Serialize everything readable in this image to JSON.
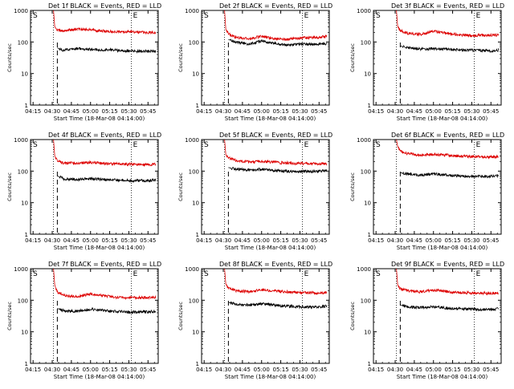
{
  "figure": {
    "panel_title_suffix": "BLACK = Events, RED = LLD",
    "xlabel": "Start Time (18-Mar-08 04:14:00)",
    "ylabel": "Counts/sec",
    "start_marker": "S",
    "end_marker": "E",
    "colors": {
      "events": "#000000",
      "lld": "#dd0000",
      "axes": "#000000"
    }
  },
  "chart_data": [
    {
      "type": "line",
      "title": "Det 1f BLACK = Events, RED = LLD",
      "x_ticks": [
        "04:15",
        "04:30",
        "04:45",
        "05:00",
        "05:15",
        "05:30",
        "05:45"
      ],
      "y_ticks": [
        "1",
        "10",
        "100",
        "1000"
      ],
      "y_scale": "log",
      "ylim": [
        1,
        1000
      ],
      "series": [
        {
          "color": "#dd0000",
          "points": [
            [
              "04:31",
              1000
            ],
            [
              "04:32",
              300
            ],
            [
              "04:34",
              240
            ],
            [
              "04:38",
              220
            ],
            [
              "04:50",
              260
            ],
            [
              "05:00",
              240
            ],
            [
              "05:15",
              215
            ],
            [
              "05:30",
              210
            ],
            [
              "05:45",
              200
            ],
            [
              "05:51",
              205
            ]
          ]
        },
        {
          "color": "#000000",
          "points": [
            [
              "04:34",
              65
            ],
            [
              "04:38",
              55
            ],
            [
              "04:50",
              62
            ],
            [
              "05:00",
              58
            ],
            [
              "05:15",
              56
            ],
            [
              "05:30",
              52
            ],
            [
              "05:45",
              50
            ],
            [
              "05:51",
              52
            ]
          ]
        }
      ]
    },
    {
      "type": "line",
      "title": "Det 2f BLACK = Events, RED = LLD",
      "x_ticks": [
        "04:15",
        "04:30",
        "04:45",
        "05:00",
        "05:15",
        "05:30",
        "05:45"
      ],
      "y_ticks": [
        "1",
        "10",
        "100",
        "1000"
      ],
      "y_scale": "log",
      "ylim": [
        1,
        1000
      ],
      "series": [
        {
          "color": "#dd0000",
          "points": [
            [
              "04:31",
              1000
            ],
            [
              "04:32",
              250
            ],
            [
              "04:34",
              180
            ],
            [
              "04:40",
              140
            ],
            [
              "04:50",
              125
            ],
            [
              "05:00",
              150
            ],
            [
              "05:10",
              130
            ],
            [
              "05:20",
              120
            ],
            [
              "05:30",
              135
            ],
            [
              "05:45",
              140
            ],
            [
              "05:51",
              150
            ]
          ]
        },
        {
          "color": "#000000",
          "points": [
            [
              "04:34",
              120
            ],
            [
              "04:38",
              105
            ],
            [
              "04:50",
              85
            ],
            [
              "05:00",
              105
            ],
            [
              "05:10",
              90
            ],
            [
              "05:20",
              80
            ],
            [
              "05:30",
              85
            ],
            [
              "05:45",
              85
            ],
            [
              "05:51",
              88
            ]
          ]
        }
      ]
    },
    {
      "type": "line",
      "title": "Det 3f BLACK = Events, RED = LLD",
      "x_ticks": [
        "04:15",
        "04:30",
        "04:45",
        "05:00",
        "05:15",
        "05:30",
        "05:45"
      ],
      "y_ticks": [
        "1",
        "10",
        "100",
        "1000"
      ],
      "y_scale": "log",
      "ylim": [
        1,
        1000
      ],
      "series": [
        {
          "color": "#dd0000",
          "points": [
            [
              "04:31",
              1000
            ],
            [
              "04:32",
              300
            ],
            [
              "04:34",
              230
            ],
            [
              "04:40",
              190
            ],
            [
              "04:50",
              175
            ],
            [
              "05:00",
              220
            ],
            [
              "05:10",
              190
            ],
            [
              "05:20",
              170
            ],
            [
              "05:30",
              160
            ],
            [
              "05:45",
              165
            ],
            [
              "05:51",
              170
            ]
          ]
        },
        {
          "color": "#000000",
          "points": [
            [
              "04:34",
              75
            ],
            [
              "04:40",
              65
            ],
            [
              "04:50",
              60
            ],
            [
              "05:00",
              62
            ],
            [
              "05:15",
              57
            ],
            [
              "05:30",
              55
            ],
            [
              "05:45",
              52
            ],
            [
              "05:51",
              55
            ]
          ]
        }
      ]
    },
    {
      "type": "line",
      "title": "Det 4f BLACK = Events, RED = LLD",
      "x_ticks": [
        "04:15",
        "04:30",
        "04:45",
        "05:00",
        "05:15",
        "05:30",
        "05:45"
      ],
      "y_ticks": [
        "1",
        "10",
        "100",
        "1000"
      ],
      "y_scale": "log",
      "ylim": [
        1,
        1000
      ],
      "series": [
        {
          "color": "#dd0000",
          "points": [
            [
              "04:31",
              1000
            ],
            [
              "04:32",
              300
            ],
            [
              "04:34",
              210
            ],
            [
              "04:40",
              175
            ],
            [
              "04:50",
              180
            ],
            [
              "05:00",
              190
            ],
            [
              "05:15",
              170
            ],
            [
              "05:30",
              165
            ],
            [
              "05:45",
              160
            ],
            [
              "05:51",
              165
            ]
          ]
        },
        {
          "color": "#000000",
          "points": [
            [
              "04:34",
              70
            ],
            [
              "04:40",
              55
            ],
            [
              "04:50",
              55
            ],
            [
              "05:00",
              58
            ],
            [
              "05:15",
              53
            ],
            [
              "05:30",
              50
            ],
            [
              "05:45",
              50
            ],
            [
              "05:51",
              52
            ]
          ]
        }
      ]
    },
    {
      "type": "line",
      "title": "Det 5f BLACK = Events, RED = LLD",
      "x_ticks": [
        "04:15",
        "04:30",
        "04:45",
        "05:00",
        "05:15",
        "05:30",
        "05:45"
      ],
      "y_ticks": [
        "1",
        "10",
        "100",
        "1000"
      ],
      "y_scale": "log",
      "ylim": [
        1,
        1000
      ],
      "series": [
        {
          "color": "#dd0000",
          "points": [
            [
              "04:31",
              1000
            ],
            [
              "04:32",
              330
            ],
            [
              "04:34",
              260
            ],
            [
              "04:40",
              220
            ],
            [
              "04:50",
              195
            ],
            [
              "05:00",
              205
            ],
            [
              "05:15",
              185
            ],
            [
              "05:30",
              175
            ],
            [
              "05:45",
              170
            ],
            [
              "05:51",
              175
            ]
          ]
        },
        {
          "color": "#000000",
          "points": [
            [
              "04:34",
              130
            ],
            [
              "04:40",
              115
            ],
            [
              "04:50",
              108
            ],
            [
              "05:00",
              115
            ],
            [
              "05:15",
              100
            ],
            [
              "05:30",
              98
            ],
            [
              "05:45",
              100
            ],
            [
              "05:51",
              105
            ]
          ]
        }
      ]
    },
    {
      "type": "line",
      "title": "Det 6f BLACK = Events, RED = LLD",
      "x_ticks": [
        "04:15",
        "04:30",
        "04:45",
        "05:00",
        "05:15",
        "05:30",
        "05:45"
      ],
      "y_ticks": [
        "1",
        "10",
        "100",
        "1000"
      ],
      "y_scale": "log",
      "ylim": [
        1,
        1000
      ],
      "series": [
        {
          "color": "#dd0000",
          "points": [
            [
              "04:31",
              1000
            ],
            [
              "04:32",
              600
            ],
            [
              "04:34",
              420
            ],
            [
              "04:40",
              360
            ],
            [
              "04:50",
              320
            ],
            [
              "05:00",
              340
            ],
            [
              "05:15",
              310
            ],
            [
              "05:30",
              290
            ],
            [
              "05:45",
              280
            ],
            [
              "05:51",
              285
            ]
          ]
        },
        {
          "color": "#000000",
          "points": [
            [
              "04:34",
              90
            ],
            [
              "04:40",
              80
            ],
            [
              "04:50",
              75
            ],
            [
              "05:00",
              82
            ],
            [
              "05:15",
              72
            ],
            [
              "05:30",
              68
            ],
            [
              "05:45",
              68
            ],
            [
              "05:51",
              72
            ]
          ]
        }
      ]
    },
    {
      "type": "line",
      "title": "Det 7f BLACK = Events, RED = LLD",
      "x_ticks": [
        "04:15",
        "04:30",
        "04:45",
        "05:00",
        "05:15",
        "05:30",
        "05:45"
      ],
      "y_ticks": [
        "1",
        "10",
        "100",
        "1000"
      ],
      "y_scale": "log",
      "ylim": [
        1,
        1000
      ],
      "series": [
        {
          "color": "#dd0000",
          "points": [
            [
              "04:31",
              1000
            ],
            [
              "04:32",
              300
            ],
            [
              "04:34",
              180
            ],
            [
              "04:40",
              140
            ],
            [
              "04:50",
              130
            ],
            [
              "05:00",
              160
            ],
            [
              "05:15",
              130
            ],
            [
              "05:30",
              120
            ],
            [
              "05:45",
              120
            ],
            [
              "05:51",
              125
            ]
          ]
        },
        {
          "color": "#000000",
          "points": [
            [
              "04:34",
              55
            ],
            [
              "04:40",
              45
            ],
            [
              "04:50",
              45
            ],
            [
              "05:00",
              52
            ],
            [
              "05:15",
              45
            ],
            [
              "05:30",
              42
            ],
            [
              "05:45",
              43
            ],
            [
              "05:51",
              45
            ]
          ]
        }
      ]
    },
    {
      "type": "line",
      "title": "Det 8f BLACK = Events, RED = LLD",
      "x_ticks": [
        "04:15",
        "04:30",
        "04:45",
        "05:00",
        "05:15",
        "05:30",
        "05:45"
      ],
      "y_ticks": [
        "1",
        "10",
        "100",
        "1000"
      ],
      "y_scale": "log",
      "ylim": [
        1,
        1000
      ],
      "series": [
        {
          "color": "#dd0000",
          "points": [
            [
              "04:31",
              1000
            ],
            [
              "04:32",
              320
            ],
            [
              "04:34",
              240
            ],
            [
              "04:40",
              200
            ],
            [
              "04:50",
              185
            ],
            [
              "05:00",
              215
            ],
            [
              "05:15",
              190
            ],
            [
              "05:30",
              175
            ],
            [
              "05:45",
              170
            ],
            [
              "05:51",
              175
            ]
          ]
        },
        {
          "color": "#000000",
          "points": [
            [
              "04:34",
              85
            ],
            [
              "04:40",
              75
            ],
            [
              "04:50",
              70
            ],
            [
              "05:00",
              78
            ],
            [
              "05:15",
              66
            ],
            [
              "05:30",
              62
            ],
            [
              "05:45",
              60
            ],
            [
              "05:51",
              65
            ]
          ]
        }
      ]
    },
    {
      "type": "line",
      "title": "Det 9f BLACK = Events, RED = LLD",
      "x_ticks": [
        "04:15",
        "04:30",
        "04:45",
        "05:00",
        "05:15",
        "05:30",
        "05:45"
      ],
      "y_ticks": [
        "1",
        "10",
        "100",
        "1000"
      ],
      "y_scale": "log",
      "ylim": [
        1,
        1000
      ],
      "series": [
        {
          "color": "#dd0000",
          "points": [
            [
              "04:31",
              1000
            ],
            [
              "04:32",
              300
            ],
            [
              "04:34",
              230
            ],
            [
              "04:40",
              200
            ],
            [
              "04:50",
              185
            ],
            [
              "05:00",
              210
            ],
            [
              "05:15",
              180
            ],
            [
              "05:30",
              170
            ],
            [
              "05:45",
              165
            ],
            [
              "05:51",
              170
            ]
          ]
        },
        {
          "color": "#000000",
          "points": [
            [
              "04:34",
              70
            ],
            [
              "04:40",
              62
            ],
            [
              "04:50",
              58
            ],
            [
              "05:00",
              62
            ],
            [
              "05:15",
              55
            ],
            [
              "05:30",
              52
            ],
            [
              "05:45",
              50
            ],
            [
              "05:51",
              53
            ]
          ]
        }
      ]
    }
  ]
}
